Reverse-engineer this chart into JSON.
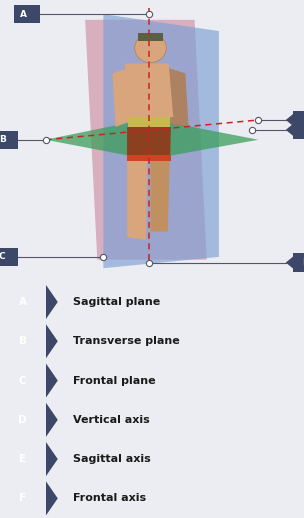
{
  "bg_color": "#ecedf2",
  "row_bg": "#dddde8",
  "label_bg": "#3d4869",
  "label_text_color": "#ffffff",
  "item_text_color": "#1a1a1a",
  "legend_items": [
    {
      "letter": "A",
      "text": "Sagittal plane"
    },
    {
      "letter": "B",
      "text": "Transverse plane"
    },
    {
      "letter": "C",
      "text": "Frontal plane"
    },
    {
      "letter": "D",
      "text": "Vertical axis"
    },
    {
      "letter": "E",
      "text": "Sagittal axis"
    },
    {
      "letter": "F",
      "text": "Frontal axis"
    }
  ],
  "planes": {
    "sagittal_color": "#7b9fd4",
    "sagittal_alpha": 0.65,
    "frontal_color": "#c87c96",
    "frontal_alpha": 0.55,
    "transverse_color": "#3a9e5a",
    "transverse_alpha": 0.75
  },
  "axis_color": "#cc2222",
  "connector_color": "#555566",
  "dot_face": "#ffffff",
  "dot_edge": "#555566",
  "dot_size": 4.5
}
